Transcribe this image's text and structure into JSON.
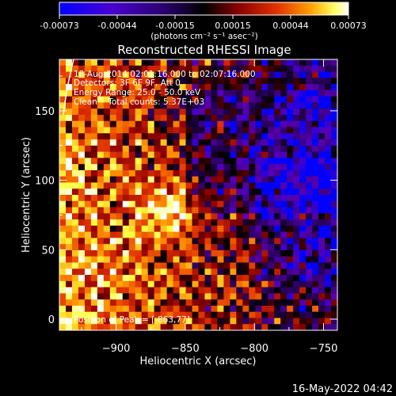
{
  "colorbar": {
    "ticks": [
      "-0.00073",
      "-0.00044",
      "-0.00015",
      "0.00015",
      "0.00044",
      "0.00073"
    ],
    "unit_label": "(photons cm⁻² s⁻¹ asec⁻²)",
    "range": [
      -0.00073,
      0.00073
    ]
  },
  "annotations": {
    "time_range": "18-Aug-2014 02:01:16.000 to 02:07:16.000",
    "detectors": "Detectors: 3F 6F 9F, Att 0",
    "energy": "Energy Range: 25.0 - 50.0 keV",
    "method": "Clean    Total counts: 5.37E+03",
    "peak": "Position of Peak = [-863,77]",
    "footer_date": "16-May-2022 04:42"
  },
  "chart_data": {
    "type": "heatmap",
    "title": "Reconstructed RHESSI Image",
    "xlabel": "Heliocentric X (arcsec)",
    "ylabel": "Heliocentric Y (arcsec)",
    "xlim": [
      -941,
      -740
    ],
    "ylim": [
      -8,
      187
    ],
    "x_ticks": [
      {
        "value": -900,
        "label": "−900"
      },
      {
        "value": -850,
        "label": "−850"
      },
      {
        "value": -800,
        "label": "−800"
      },
      {
        "value": -750,
        "label": "−750"
      }
    ],
    "y_ticks": [
      {
        "value": 0,
        "label": "0"
      },
      {
        "value": 50,
        "label": "50"
      },
      {
        "value": 100,
        "label": "100"
      },
      {
        "value": 150,
        "label": "150"
      }
    ],
    "peak_position": [
      -863,
      77
    ],
    "colormap": [
      "#0000ff",
      "#5a00b4",
      "#2a0060",
      "#000000",
      "#8a0000",
      "#e03000",
      "#ff9000",
      "#ffff40",
      "#ffffff"
    ]
  }
}
